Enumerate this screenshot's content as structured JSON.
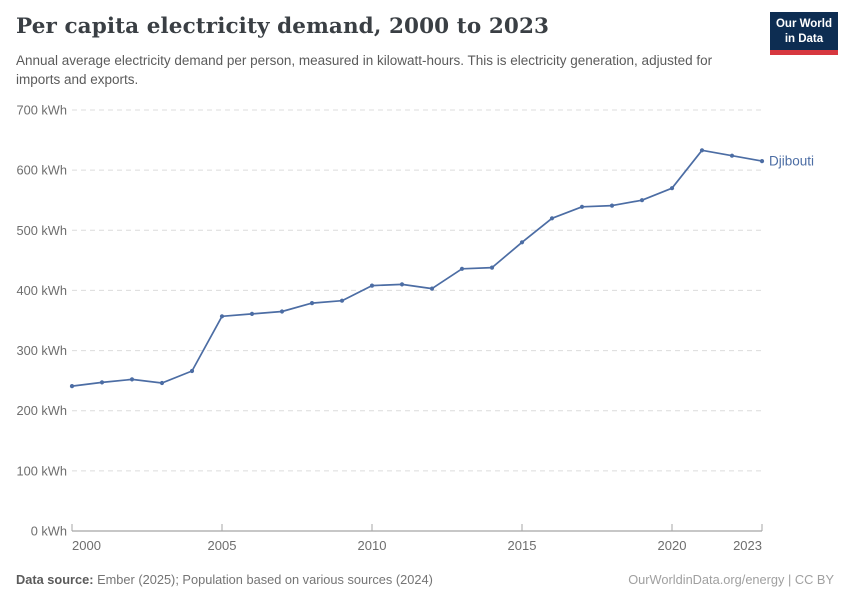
{
  "header": {
    "title": "Per capita electricity demand, 2000 to 2023",
    "subtitle": "Annual average electricity demand per person, measured in kilowatt-hours. This is electricity generation, adjusted for imports and exports.",
    "logo": {
      "line1": "Our World",
      "line2": "in Data"
    }
  },
  "chart_data": {
    "type": "line",
    "title": "Per capita electricity demand, 2000 to 2023",
    "xlabel": "",
    "ylabel": "kWh",
    "xlim": [
      2000,
      2023
    ],
    "ylim": [
      0,
      700
    ],
    "grid": "horizontal-dashed",
    "legend_position": "end-of-line-label",
    "xticks": [
      2000,
      2005,
      2010,
      2015,
      2020,
      2023
    ],
    "yticks": [
      0,
      100,
      200,
      300,
      400,
      500,
      600,
      700
    ],
    "ytick_labels": [
      "0 kWh",
      "100 kWh",
      "200 kWh",
      "300 kWh",
      "400 kWh",
      "500 kWh",
      "600 kWh",
      "700 kWh"
    ],
    "series": [
      {
        "name": "Djibouti",
        "color": "#4c6da4",
        "x": [
          2000,
          2001,
          2002,
          2003,
          2004,
          2005,
          2006,
          2007,
          2008,
          2009,
          2010,
          2011,
          2012,
          2013,
          2014,
          2015,
          2016,
          2017,
          2018,
          2019,
          2020,
          2021,
          2022,
          2023
        ],
        "values": [
          241,
          247,
          252,
          246,
          266,
          357,
          361,
          365,
          379,
          383,
          408,
          410,
          403,
          436,
          438,
          480,
          520,
          539,
          541,
          550,
          570,
          633,
          624,
          615
        ]
      }
    ]
  },
  "footer": {
    "datasource_label": "Data source:",
    "datasource_text": " Ember (2025); Population based on various sources (2024)",
    "credit": "OurWorldinData.org/energy | CC BY"
  },
  "colors": {
    "accent_line": "#4c6da4",
    "gridline": "#dcdcdc",
    "axis_line": "#8f8f8f",
    "tick_mark": "#a6a6a6",
    "tick_label": "#6e6e6e",
    "logo_bg": "#0d2d52",
    "logo_stripe": "#d7383f"
  }
}
